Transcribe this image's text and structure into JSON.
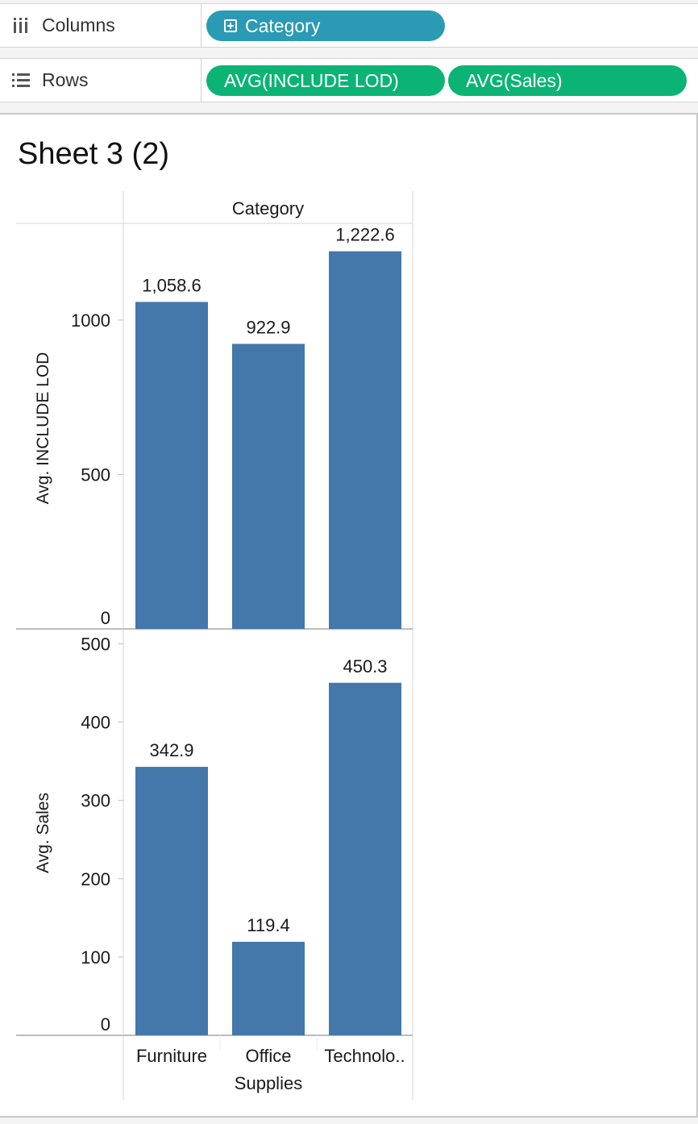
{
  "shelves": {
    "columns": {
      "label": "Columns",
      "icon": "columns-icon",
      "pills": [
        {
          "label": "Category",
          "kind": "dimension",
          "icon": "plus-box-icon"
        }
      ]
    },
    "rows": {
      "label": "Rows",
      "icon": "rows-icon",
      "pills": [
        {
          "label": "AVG(INCLUDE LOD)",
          "kind": "measure"
        },
        {
          "label": "AVG(Sales)",
          "kind": "measure"
        }
      ]
    }
  },
  "colors": {
    "dimension_pill": "#2a9ab5",
    "measure_pill": "#0bb475",
    "bar": "#4477aa"
  },
  "sheet": {
    "title": "Sheet 3 (2)"
  },
  "chart_data": {
    "type": "bar",
    "header": "Category",
    "categories": [
      "Furniture",
      "Office Supplies",
      "Technolo.."
    ],
    "panes": [
      {
        "measure": "Avg. INCLUDE LOD",
        "values": [
          1058.6,
          922.9,
          1222.6
        ],
        "value_labels": [
          "1,058.6",
          "922.9",
          "1,222.6"
        ],
        "ylim": [
          0,
          1300
        ],
        "ticks": [
          0,
          500,
          1000
        ],
        "tick_labels": [
          "0",
          "500",
          "1000"
        ]
      },
      {
        "measure": "Avg. Sales",
        "values": [
          342.9,
          119.4,
          450.3
        ],
        "value_labels": [
          "342.9",
          "119.4",
          "450.3"
        ],
        "ylim": [
          0,
          517
        ],
        "ticks": [
          0,
          100,
          200,
          300,
          400,
          500
        ],
        "tick_labels": [
          "0",
          "100",
          "200",
          "300",
          "400",
          "500"
        ]
      }
    ],
    "grid": false
  }
}
